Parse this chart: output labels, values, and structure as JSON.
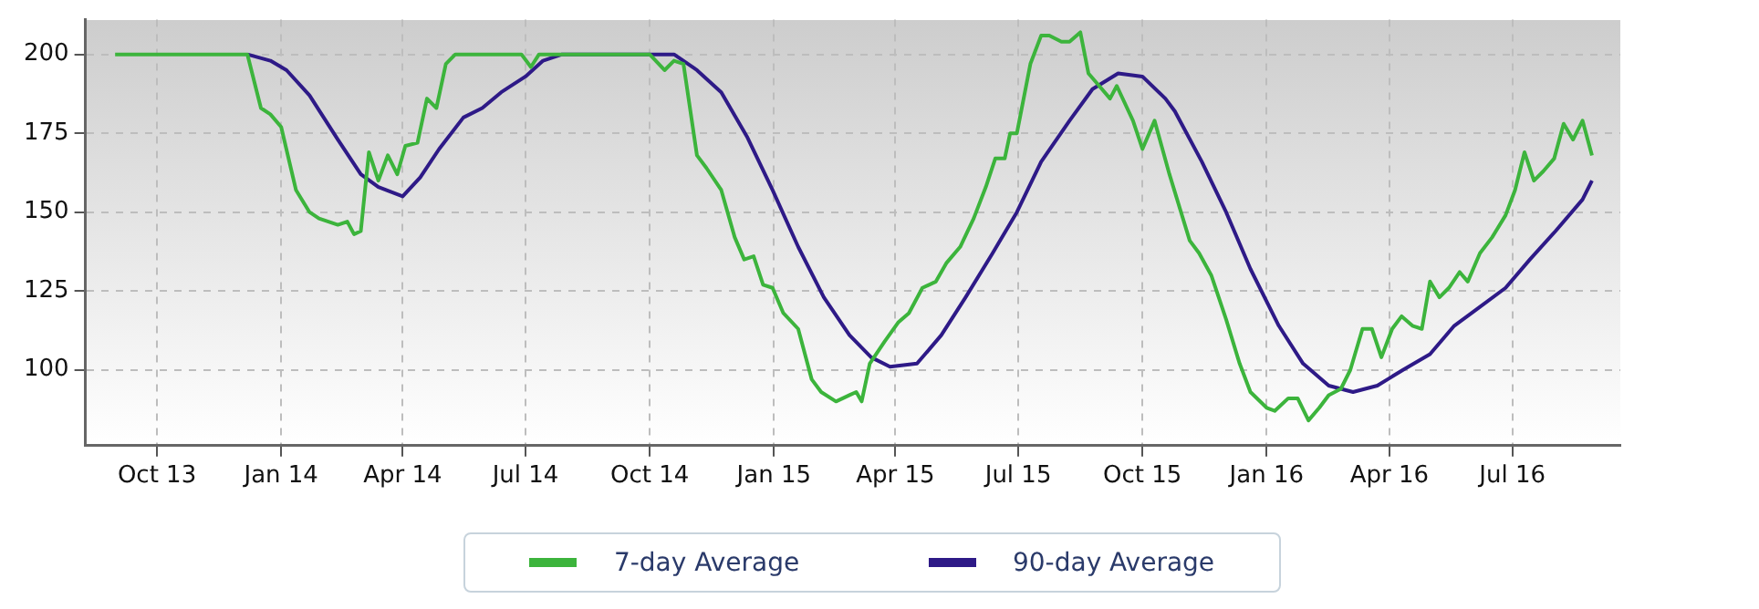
{
  "chart_data": {
    "type": "line",
    "xlim": [
      "2013-08-09",
      "2016-09-19"
    ],
    "ylim": [
      76,
      211
    ],
    "xticks": [
      {
        "value": "2013-10-01",
        "label": "Oct 13"
      },
      {
        "value": "2014-01-01",
        "label": "Jan 14"
      },
      {
        "value": "2014-04-01",
        "label": "Apr 14"
      },
      {
        "value": "2014-07-01",
        "label": "Jul 14"
      },
      {
        "value": "2014-10-01",
        "label": "Oct 14"
      },
      {
        "value": "2015-01-01",
        "label": "Jan 15"
      },
      {
        "value": "2015-04-01",
        "label": "Apr 15"
      },
      {
        "value": "2015-07-01",
        "label": "Jul 15"
      },
      {
        "value": "2015-10-01",
        "label": "Oct 15"
      },
      {
        "value": "2016-01-01",
        "label": "Jan 16"
      },
      {
        "value": "2016-04-01",
        "label": "Apr 16"
      },
      {
        "value": "2016-07-01",
        "label": "Jul 16"
      }
    ],
    "yticks": [
      100,
      125,
      150,
      175,
      200
    ],
    "grid": true,
    "legend": "bottom",
    "marker": "none",
    "line_style": "solid",
    "series": [
      {
        "name": "7-day Average",
        "color": "#3cb43c",
        "x": [
          "2013-08-31",
          "2013-12-07",
          "2013-12-17",
          "2013-12-24",
          "2014-01-01",
          "2014-01-12",
          "2014-01-22",
          "2014-01-29",
          "2014-02-12",
          "2014-02-19",
          "2014-02-24",
          "2014-03-01",
          "2014-03-07",
          "2014-03-14",
          "2014-03-21",
          "2014-03-28",
          "2014-04-03",
          "2014-04-12",
          "2014-04-19",
          "2014-04-26",
          "2014-05-03",
          "2014-05-10",
          "2014-06-28",
          "2014-07-05",
          "2014-07-11",
          "2014-10-01",
          "2014-10-12",
          "2014-10-19",
          "2014-10-26",
          "2014-11-05",
          "2014-11-12",
          "2014-11-23",
          "2014-12-03",
          "2014-12-10",
          "2014-12-17",
          "2014-12-24",
          "2014-12-31",
          "2015-01-08",
          "2015-01-19",
          "2015-01-29",
          "2015-02-05",
          "2015-02-16",
          "2015-02-26",
          "2015-03-03",
          "2015-03-07",
          "2015-03-13",
          "2015-03-24",
          "2015-04-03",
          "2015-04-11",
          "2015-04-21",
          "2015-05-01",
          "2015-05-09",
          "2015-05-19",
          "2015-05-29",
          "2015-06-07",
          "2015-06-14",
          "2015-06-21",
          "2015-06-25",
          "2015-06-30",
          "2015-07-10",
          "2015-07-18",
          "2015-07-24",
          "2015-08-02",
          "2015-08-08",
          "2015-08-16",
          "2015-08-22",
          "2015-08-30",
          "2015-09-07",
          "2015-09-12",
          "2015-09-24",
          "2015-10-01",
          "2015-10-10",
          "2015-10-21",
          "2015-11-05",
          "2015-11-12",
          "2015-11-21",
          "2015-12-02",
          "2015-12-12",
          "2015-12-20",
          "2016-01-01",
          "2016-01-07",
          "2016-01-17",
          "2016-01-24",
          "2016-02-01",
          "2016-02-09",
          "2016-02-16",
          "2016-02-25",
          "2016-03-03",
          "2016-03-12",
          "2016-03-19",
          "2016-03-26",
          "2016-04-03",
          "2016-04-10",
          "2016-04-18",
          "2016-04-25",
          "2016-05-01",
          "2016-05-08",
          "2016-05-15",
          "2016-05-23",
          "2016-05-29",
          "2016-06-07",
          "2016-06-16",
          "2016-06-26",
          "2016-07-03",
          "2016-07-10",
          "2016-07-17",
          "2016-07-24",
          "2016-08-01",
          "2016-08-08",
          "2016-08-15",
          "2016-08-22",
          "2016-08-29"
        ],
        "values": [
          200,
          200,
          183,
          181,
          177,
          157,
          150,
          148,
          146,
          147,
          143,
          144,
          169,
          160,
          168,
          162,
          171,
          172,
          186,
          183,
          197,
          200,
          200,
          196,
          200,
          200,
          195,
          198,
          197,
          168,
          164,
          157,
          142,
          135,
          136,
          127,
          126,
          118,
          113,
          97,
          93,
          90,
          92,
          93,
          90,
          102,
          109,
          115,
          118,
          126,
          128,
          134,
          139,
          148,
          158,
          167,
          167,
          175,
          175,
          197,
          206,
          206,
          204,
          204,
          207,
          194,
          190,
          186,
          190,
          179,
          170,
          179,
          162,
          141,
          137,
          130,
          116,
          102,
          93,
          88,
          87,
          91,
          91,
          84,
          88,
          92,
          94,
          100,
          113,
          113,
          104,
          113,
          117,
          114,
          113,
          128,
          123,
          126,
          131,
          128,
          137,
          142,
          149,
          157,
          169,
          160,
          163,
          167,
          178,
          173,
          179,
          168
        ]
      },
      {
        "name": "90-day Average",
        "color": "#2e1a87",
        "x": [
          "2013-12-07",
          "2013-12-24",
          "2014-01-05",
          "2014-01-22",
          "2014-02-12",
          "2014-03-01",
          "2014-03-14",
          "2014-04-01",
          "2014-04-14",
          "2014-04-28",
          "2014-05-16",
          "2014-05-30",
          "2014-06-13",
          "2014-07-01",
          "2014-07-14",
          "2014-07-28",
          "2014-10-01",
          "2014-10-19",
          "2014-11-05",
          "2014-11-23",
          "2014-12-12",
          "2014-12-31",
          "2015-01-19",
          "2015-02-07",
          "2015-02-26",
          "2015-03-14",
          "2015-03-28",
          "2015-04-17",
          "2015-05-05",
          "2015-05-23",
          "2015-06-12",
          "2015-06-30",
          "2015-07-18",
          "2015-08-08",
          "2015-08-25",
          "2015-09-13",
          "2015-10-01",
          "2015-10-18",
          "2015-10-25",
          "2015-11-14",
          "2015-12-02",
          "2015-12-20",
          "2016-01-10",
          "2016-01-28",
          "2016-02-16",
          "2016-03-05",
          "2016-03-23",
          "2016-04-11",
          "2016-05-01",
          "2016-05-19",
          "2016-06-07",
          "2016-06-26",
          "2016-07-14",
          "2016-08-02",
          "2016-08-22",
          "2016-08-29"
        ],
        "values": [
          200,
          198,
          195,
          187,
          173,
          162,
          158,
          155,
          161,
          170,
          180,
          183,
          188,
          193,
          198,
          200,
          200,
          200,
          195,
          188,
          174,
          157,
          139,
          123,
          111,
          104,
          101,
          102,
          111,
          123,
          137,
          150,
          166,
          179,
          189,
          194,
          193,
          186,
          182,
          166,
          150,
          132,
          114,
          102,
          95,
          93,
          95,
          100,
          105,
          114,
          120,
          126,
          135,
          144,
          154,
          160
        ]
      }
    ]
  }
}
